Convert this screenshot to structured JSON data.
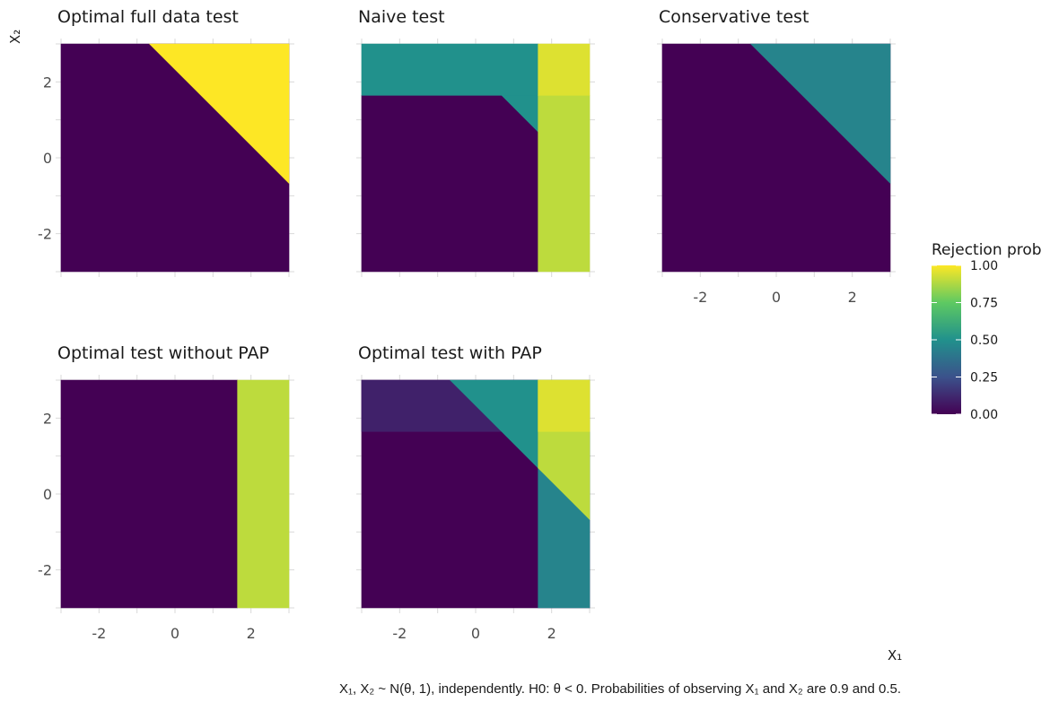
{
  "chart_data": {
    "type": "heatmap",
    "layout": "facet grid, 2 rows x 3 columns",
    "x_label": "X₁",
    "y_label": "X₂",
    "x_range": [
      -3,
      3
    ],
    "y_range": [
      -3,
      3
    ],
    "x_ticks": [
      -2,
      0,
      2
    ],
    "y_ticks": [
      -2,
      0,
      2
    ],
    "grid": true,
    "fill_variable": "Rejection prob",
    "colormap": "viridis",
    "legend": {
      "title": "Rejection prob",
      "position": "right",
      "ticks": [
        "1.00",
        "0.75",
        "0.50",
        "0.25",
        "0.00"
      ],
      "range": [
        0,
        1
      ]
    },
    "panels": [
      {
        "title": "Optimal full data test",
        "regions": [
          {
            "description": "whole plane",
            "prob": 0.0
          },
          {
            "description": "X1 + X2 > 2.33 (upper-right triangle)",
            "prob": 1.0
          }
        ]
      },
      {
        "title": "Naive test",
        "regions": [
          {
            "description": "X1 < 1.645 and X2 < 1.645, outside triangle",
            "prob": 0.0
          },
          {
            "description": "X2 > 1.645 and X1 < 1.645",
            "prob": 0.5
          },
          {
            "description": "X1 + X2 > 2.33 with X1, X2 < 1.645",
            "prob": 0.5
          },
          {
            "description": "X1 > 1.645 and X2 < 1.645",
            "prob": 0.9
          },
          {
            "description": "X1 > 1.645 and X2 > 1.645",
            "prob": 0.95
          }
        ]
      },
      {
        "title": "Conservative test",
        "regions": [
          {
            "description": "whole plane",
            "prob": 0.0
          },
          {
            "description": "X1 + X2 > 2.33",
            "prob": 0.45
          }
        ]
      },
      {
        "title": "Optimal test without PAP",
        "regions": [
          {
            "description": "X1 < 1.645",
            "prob": 0.0
          },
          {
            "description": "X1 > 1.645",
            "prob": 0.9
          }
        ]
      },
      {
        "title": "Optimal test with PAP",
        "regions": [
          {
            "description": "whole plane",
            "prob": 0.0
          },
          {
            "description": "X2 > 1.645 and X1 < 1.645",
            "prob": 0.1
          },
          {
            "description": "X1 + X2 > 2.33 with X1 < 1.645",
            "prob": 0.5
          },
          {
            "description": "X1 > 1.645",
            "prob": 0.45
          },
          {
            "description": "X1 > 1.645 and X1 + X2 > 2.33",
            "prob": 0.9
          },
          {
            "description": "X1 > 1.645 and X2 > 1.645",
            "prob": 0.95
          }
        ]
      }
    ],
    "caption": "X₁, X₂ ~ N(θ, 1), independently. H0: θ < 0. Probabilities of observing X₁ and X₂ are 0.9 and 0.5."
  }
}
